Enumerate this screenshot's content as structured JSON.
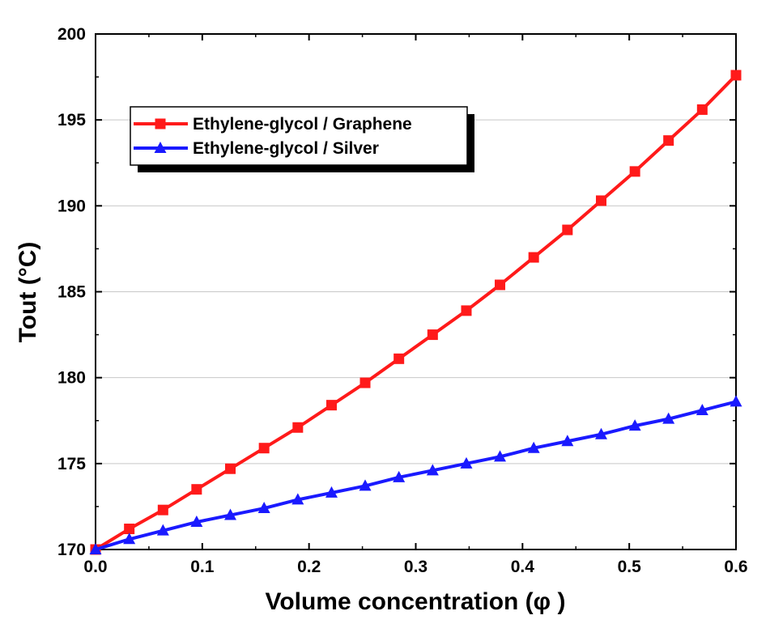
{
  "chart_data": {
    "type": "line",
    "title": "",
    "xlabel": "Volume concentration (φ  )",
    "ylabel": "Tout (°C)",
    "xlim": [
      0.0,
      0.6
    ],
    "ylim": [
      170,
      200
    ],
    "x_ticks": [
      "0.0",
      "0.1",
      "0.2",
      "0.3",
      "0.4",
      "0.5",
      "0.6"
    ],
    "y_ticks": [
      "170",
      "175",
      "180",
      "185",
      "190",
      "195",
      "200"
    ],
    "grid": "horizontal",
    "legend_position": "top-left",
    "x": [
      0.0,
      0.0316,
      0.0632,
      0.0947,
      0.1263,
      0.1579,
      0.1895,
      0.2211,
      0.2526,
      0.2842,
      0.3158,
      0.3474,
      0.3789,
      0.4105,
      0.4421,
      0.4737,
      0.5053,
      0.5368,
      0.5684,
      0.6
    ],
    "series": [
      {
        "name": "Ethylene-glycol / Graphene",
        "color": "#ff1a1a",
        "marker": "square",
        "values": [
          170.0,
          171.2,
          172.3,
          173.5,
          174.7,
          175.9,
          177.1,
          178.4,
          179.7,
          181.1,
          182.5,
          183.9,
          185.4,
          187.0,
          188.6,
          190.3,
          192.0,
          193.8,
          195.6,
          197.6
        ]
      },
      {
        "name": "Ethylene-glycol / Silver",
        "color": "#1a1aff",
        "marker": "triangle",
        "values": [
          170.0,
          170.6,
          171.1,
          171.6,
          172.0,
          172.4,
          172.9,
          173.3,
          173.7,
          174.2,
          174.6,
          175.0,
          175.4,
          175.9,
          176.3,
          176.7,
          177.2,
          177.6,
          178.1,
          178.6
        ]
      }
    ]
  }
}
